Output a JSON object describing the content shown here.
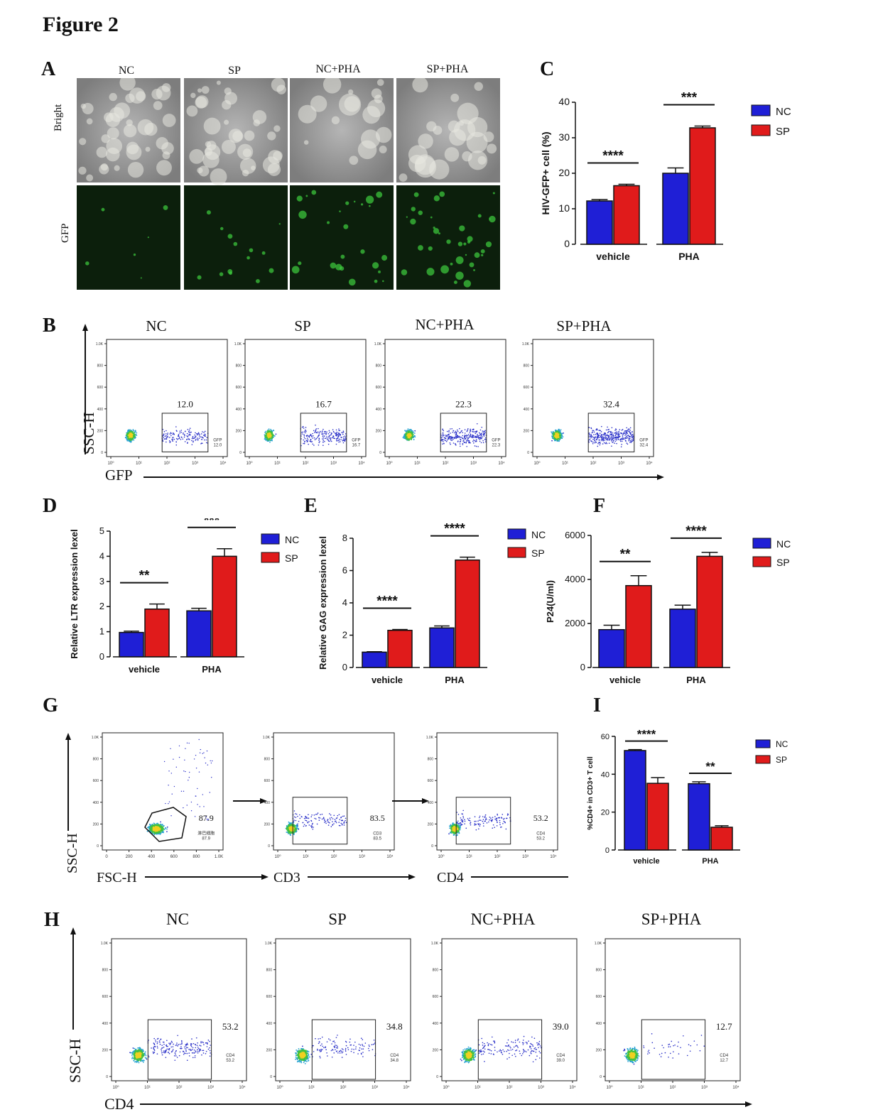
{
  "figure_title": "Figure 2",
  "colors": {
    "nc": "#1f1fd6",
    "sp": "#e01b1b",
    "gfp_bg": "#0a1a0a",
    "bright_bg": "#8a8a8a"
  },
  "panels": {
    "A": {
      "letter": "A",
      "columns": [
        "NC",
        "SP",
        "NC+PHA",
        "SP+PHA"
      ],
      "rows": [
        "Bright",
        "GFP"
      ]
    },
    "B": {
      "letter": "B",
      "groups": [
        "NC",
        "SP",
        "NC+PHA",
        "SP+PHA"
      ],
      "y_axis": "SSC-H",
      "x_axis": "GFP",
      "y_ticks": [
        "1.0K",
        "800",
        "600",
        "400",
        "200",
        "0"
      ],
      "x_ticks": [
        "10⁰",
        "10¹",
        "10²",
        "10³",
        "10⁴"
      ],
      "gate_values": [
        "12.0",
        "16.7",
        "22.3",
        "32.4"
      ],
      "gate_label": "GFP"
    },
    "C": {
      "letter": "C"
    },
    "D": {
      "letter": "D"
    },
    "E": {
      "letter": "E"
    },
    "F": {
      "letter": "F"
    },
    "G": {
      "letter": "G",
      "plots": [
        {
          "x_axis": "FSC-H",
          "value": "87.9",
          "gate_label": "淋巴细胞",
          "x_ticks": [
            "0",
            "200",
            "400",
            "600",
            "800",
            "1.0K"
          ]
        },
        {
          "x_axis": "CD3",
          "value": "83.5",
          "gate_label": "CD3",
          "x_ticks": [
            "10⁰",
            "10¹",
            "10²",
            "10³",
            "10⁴"
          ]
        },
        {
          "x_axis": "CD4",
          "value": "53.2",
          "gate_label": "CD4",
          "x_ticks": [
            "10⁰",
            "10¹",
            "10²",
            "10³",
            "10⁴"
          ]
        }
      ],
      "y_axis": "SSC-H",
      "y_ticks": [
        "1.0K",
        "800",
        "600",
        "400",
        "200",
        "0"
      ]
    },
    "H": {
      "letter": "H",
      "groups": [
        "NC",
        "SP",
        "NC+PHA",
        "SP+PHA"
      ],
      "y_axis": "SSC-H",
      "x_axis": "CD4",
      "y_ticks": [
        "1.0K",
        "800",
        "600",
        "400",
        "200",
        "0"
      ],
      "x_ticks": [
        "10⁰",
        "10¹",
        "10²",
        "10³",
        "10⁴"
      ],
      "gate_values": [
        "53.2",
        "34.8",
        "39.0",
        "12.7"
      ],
      "gate_label": "CD4"
    },
    "I": {
      "letter": "I"
    }
  },
  "chart_data": [
    {
      "id": "C",
      "type": "bar",
      "categories": [
        "vehicle",
        "PHA"
      ],
      "series": [
        {
          "name": "NC",
          "values": [
            12.2,
            20.0
          ],
          "errors": [
            0.4,
            1.5
          ]
        },
        {
          "name": "SP",
          "values": [
            16.5,
            32.8
          ],
          "errors": [
            0.4,
            0.5
          ]
        }
      ],
      "ylabel": "HIV-GFP+ cell  (%)",
      "ylim": [
        0,
        40
      ],
      "yticks": [
        0,
        10,
        20,
        30,
        40
      ],
      "significance": [
        "****",
        "***"
      ]
    },
    {
      "id": "D",
      "type": "bar",
      "categories": [
        "vehicle",
        "PHA"
      ],
      "series": [
        {
          "name": "NC",
          "values": [
            0.97,
            1.83
          ],
          "errors": [
            0.05,
            0.1
          ]
        },
        {
          "name": "SP",
          "values": [
            1.9,
            4.0
          ],
          "errors": [
            0.2,
            0.3
          ]
        }
      ],
      "ylabel": "Relative LTR expression lexel",
      "ylim": [
        0,
        5
      ],
      "yticks": [
        0,
        1,
        2,
        3,
        4,
        5
      ],
      "significance": [
        "**",
        "***"
      ]
    },
    {
      "id": "E",
      "type": "bar",
      "categories": [
        "vehicle",
        "PHA"
      ],
      "series": [
        {
          "name": "NC",
          "values": [
            0.95,
            2.45
          ],
          "errors": [
            0.03,
            0.12
          ]
        },
        {
          "name": "SP",
          "values": [
            2.3,
            6.65
          ],
          "errors": [
            0.05,
            0.18
          ]
        }
      ],
      "ylabel": "Relative GAG expression lexel",
      "ylim": [
        0,
        8
      ],
      "yticks": [
        0,
        2,
        4,
        6,
        8
      ],
      "significance": [
        "****",
        "****"
      ]
    },
    {
      "id": "F",
      "type": "bar",
      "categories": [
        "vehicle",
        "PHA"
      ],
      "series": [
        {
          "name": "NC",
          "values": [
            1720,
            2650
          ],
          "errors": [
            200,
            180
          ]
        },
        {
          "name": "SP",
          "values": [
            3720,
            5050
          ],
          "errors": [
            450,
            180
          ]
        }
      ],
      "ylabel": "P24(U/ml)",
      "ylim": [
        0,
        6000
      ],
      "yticks": [
        0,
        2000,
        4000,
        6000
      ],
      "significance": [
        "**",
        "****"
      ]
    },
    {
      "id": "I",
      "type": "bar",
      "categories": [
        "vehicle",
        "PHA"
      ],
      "series": [
        {
          "name": "NC",
          "values": [
            52.5,
            35.0
          ],
          "errors": [
            0.5,
            1.0
          ]
        },
        {
          "name": "SP",
          "values": [
            35.2,
            12.0
          ],
          "errors": [
            3.0,
            0.8
          ]
        }
      ],
      "ylabel": "%CD4+ in CD3+ T cell",
      "ylim": [
        0,
        60
      ],
      "yticks": [
        0,
        20,
        40,
        60
      ],
      "significance": [
        "****",
        "**"
      ]
    }
  ]
}
